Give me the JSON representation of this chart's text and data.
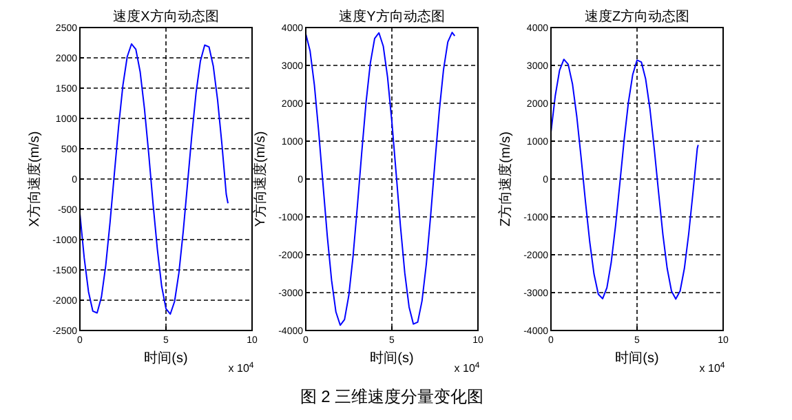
{
  "chart_data": [
    {
      "type": "line",
      "title": "速度X方向动态图",
      "xlabel": "时间(s)",
      "ylabel": "X方向速度(m/s)",
      "annotations": [
        "x 10$^{4}$"
      ],
      "x": [
        0,
        0.25,
        0.5,
        0.75,
        1,
        1.25,
        1.5,
        1.75,
        2,
        2.25,
        2.5,
        2.75,
        3,
        3.25,
        3.5,
        3.75,
        4,
        4.25,
        4.5,
        4.75,
        5,
        5.25,
        5.5,
        5.75,
        6,
        6.25,
        6.5,
        6.75,
        7,
        7.25,
        7.5,
        7.75,
        8,
        8.25,
        8.5,
        8.6
      ],
      "series": [
        {
          "color": "#0000ff",
          "values": [
            -570,
            -1300,
            -1860,
            -2180,
            -2210,
            -1950,
            -1430,
            -720,
            80,
            870,
            1550,
            2020,
            2230,
            2140,
            1770,
            1160,
            410,
            -410,
            -1160,
            -1770,
            -2140,
            -2230,
            -2020,
            -1550,
            -870,
            -80,
            720,
            1430,
            1950,
            2210,
            2180,
            1860,
            1300,
            570,
            -250,
            -400
          ]
        }
      ],
      "xlim": [
        0,
        10
      ],
      "xticks": [
        0,
        5,
        10
      ],
      "ylim": [
        -2500,
        2500
      ],
      "yticks": [
        -2500,
        -2000,
        -1500,
        -1000,
        -500,
        0,
        500,
        1000,
        1500,
        2000,
        2500
      ],
      "grid": true,
      "line_style": "solid"
    },
    {
      "type": "line",
      "title": "速度Y方向动态图",
      "xlabel": "时间(s)",
      "ylabel": "Y方向速度(m/s)",
      "annotations": [
        "x 10$^{4}$",
        "图 2  三维速度分量变化图"
      ],
      "x": [
        0,
        0.25,
        0.5,
        0.75,
        1,
        1.25,
        1.5,
        1.75,
        2,
        2.25,
        2.5,
        2.75,
        3,
        3.25,
        3.5,
        3.75,
        4,
        4.25,
        4.5,
        4.75,
        5,
        5.25,
        5.5,
        5.75,
        6,
        6.25,
        6.5,
        6.75,
        7,
        7.25,
        7.5,
        7.75,
        8,
        8.25,
        8.5,
        8.65
      ],
      "series": [
        {
          "color": "#0000ff",
          "values": [
            3830,
            3380,
            2480,
            1250,
            -140,
            -1510,
            -2680,
            -3510,
            -3860,
            -3710,
            -3070,
            -2020,
            -700,
            700,
            2020,
            3060,
            3710,
            3860,
            3510,
            2690,
            1510,
            140,
            -1250,
            -2480,
            -3380,
            -3830,
            -3780,
            -3220,
            -2250,
            -980,
            430,
            1780,
            2890,
            3620,
            3870,
            3780
          ]
        }
      ],
      "xlim": [
        0,
        10
      ],
      "xticks": [
        0,
        5,
        10
      ],
      "ylim": [
        -4000,
        4000
      ],
      "yticks": [
        -4000,
        -3000,
        -2000,
        -1000,
        0,
        1000,
        2000,
        3000,
        4000
      ],
      "grid": true,
      "line_style": "solid"
    },
    {
      "type": "line",
      "title": "速度Z方向动态图",
      "xlabel": "时间(s)",
      "ylabel": "Z方向速度(m/s)",
      "annotations": [
        "x 10$^{4}$"
      ],
      "x": [
        0,
        0.25,
        0.5,
        0.75,
        1,
        1.25,
        1.5,
        1.75,
        2,
        2.25,
        2.5,
        2.75,
        3,
        3.25,
        3.5,
        3.75,
        4,
        4.25,
        4.5,
        4.75,
        5,
        5.25,
        5.5,
        5.75,
        6,
        6.25,
        6.5,
        6.75,
        7,
        7.25,
        7.5,
        7.75,
        8,
        8.25,
        8.5,
        8.55
      ],
      "series": [
        {
          "color": "#0000ff",
          "values": [
            1240,
            2200,
            2870,
            3160,
            3030,
            2510,
            1650,
            570,
            -580,
            -1650,
            -2510,
            -3040,
            -3160,
            -2870,
            -2200,
            -1240,
            -120,
            1030,
            2030,
            2760,
            3140,
            3090,
            2640,
            1850,
            800,
            -350,
            -1460,
            -2360,
            -2960,
            -3170,
            -2960,
            -2360,
            -1450,
            -350,
            810,
            900
          ]
        }
      ],
      "xlim": [
        0,
        10
      ],
      "xticks": [
        0,
        5,
        10
      ],
      "ylim": [
        -4000,
        4000
      ],
      "yticks": [
        -4000,
        -3000,
        -2000,
        -1000,
        0,
        1000,
        2000,
        3000,
        4000
      ],
      "grid": true,
      "line_style": "solid"
    }
  ]
}
